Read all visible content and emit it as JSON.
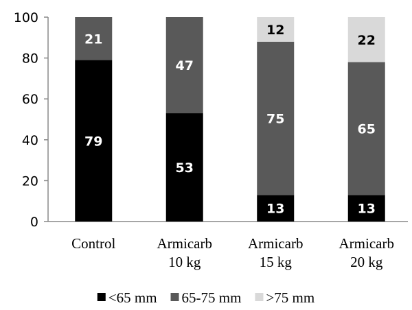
{
  "chart_data": {
    "type": "bar",
    "stacked": true,
    "categories": [
      [
        "Control"
      ],
      [
        "Armicarb",
        "10 kg"
      ],
      [
        "Armicarb",
        "15 kg"
      ],
      [
        "Armicarb",
        "20 kg"
      ]
    ],
    "series": [
      {
        "name": "<65 mm",
        "color": "#000000",
        "label_color": "#ffffff",
        "values": [
          79,
          53,
          13,
          13
        ]
      },
      {
        "name": "65-75 mm",
        "color": "#595959",
        "label_color": "#ffffff",
        "values": [
          21,
          47,
          75,
          65
        ]
      },
      {
        "name": ">75 mm",
        "color": "#d9d9d9",
        "label_color": "#000000",
        "values": [
          0,
          0,
          12,
          22
        ]
      }
    ],
    "ylim": [
      0,
      100
    ],
    "yticks": [
      0,
      20,
      40,
      60,
      80,
      100
    ],
    "grid": false,
    "legend_position": "bottom"
  }
}
